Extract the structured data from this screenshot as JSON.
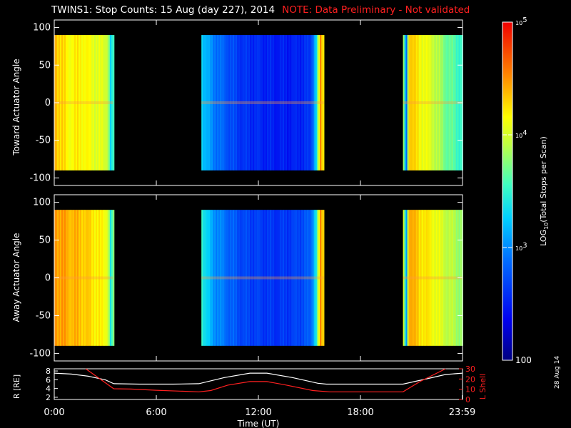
{
  "title": "TWINS1: Stop Counts: 15 Aug (day 227), 2014",
  "note": "NOTE: Data Preliminary - Not validated",
  "date_stamp": "28 Aug 14",
  "colors": {
    "background": "#000000",
    "axes": "#ffffff",
    "note": "#ff2020",
    "r_trace": "#ffffff",
    "lshell_trace": "#ff2020"
  },
  "chart_data": [
    {
      "type": "heatmap",
      "name": "toward",
      "ylabel": "Toward Actuator Angle",
      "ylim": [
        -110,
        110
      ],
      "yticks": [
        -100,
        -50,
        0,
        50,
        100
      ],
      "xlim_hours": [
        0,
        24
      ],
      "data_yrange": [
        -90,
        90
      ],
      "segments": [
        {
          "start": 0.0,
          "end": 3.45,
          "log_profile": [
            [
              0,
              4.4
            ],
            [
              0.8,
              4.15
            ],
            [
              1.6,
              4.2
            ],
            [
              2.5,
              4.05
            ],
            [
              3.1,
              4.0
            ],
            [
              3.3,
              3.2
            ],
            [
              3.45,
              3.6
            ]
          ]
        },
        {
          "start": 8.65,
          "end": 15.85,
          "log_profile": [
            [
              8.65,
              3.3
            ],
            [
              9.2,
              3.0
            ],
            [
              10.0,
              2.8
            ],
            [
              11.0,
              2.6
            ],
            [
              12.0,
              2.55
            ],
            [
              13.0,
              2.5
            ],
            [
              14.0,
              2.5
            ],
            [
              15.0,
              2.6
            ],
            [
              15.4,
              3.4
            ],
            [
              15.6,
              4.5
            ],
            [
              15.85,
              4.1
            ]
          ]
        },
        {
          "start": 20.5,
          "end": 24.0,
          "log_profile": [
            [
              20.5,
              3.8
            ],
            [
              20.65,
              2.7
            ],
            [
              20.8,
              4.4
            ],
            [
              21.3,
              4.2
            ],
            [
              22.2,
              4.0
            ],
            [
              23.0,
              3.7
            ],
            [
              24.0,
              3.5
            ]
          ]
        }
      ]
    },
    {
      "type": "heatmap",
      "name": "away",
      "ylabel": "Away Actuator Angle",
      "ylim": [
        -110,
        110
      ],
      "yticks": [
        -100,
        -50,
        0,
        50,
        100
      ],
      "xlim_hours": [
        0,
        24
      ],
      "data_yrange": [
        -90,
        90
      ],
      "segments": [
        {
          "start": 0.0,
          "end": 3.45,
          "log_profile": [
            [
              0,
              4.5
            ],
            [
              0.8,
              4.4
            ],
            [
              1.6,
              4.35
            ],
            [
              2.5,
              4.2
            ],
            [
              3.1,
              4.1
            ],
            [
              3.3,
              3.3
            ],
            [
              3.45,
              3.8
            ]
          ]
        },
        {
          "start": 8.65,
          "end": 15.85,
          "log_profile": [
            [
              8.65,
              3.5
            ],
            [
              9.2,
              3.1
            ],
            [
              10.0,
              2.9
            ],
            [
              11.0,
              2.7
            ],
            [
              12.0,
              2.65
            ],
            [
              13.0,
              2.6
            ],
            [
              14.0,
              2.65
            ],
            [
              15.0,
              2.8
            ],
            [
              15.4,
              3.5
            ],
            [
              15.6,
              4.5
            ],
            [
              15.85,
              4.2
            ]
          ]
        },
        {
          "start": 20.5,
          "end": 24.0,
          "log_profile": [
            [
              20.5,
              4.0
            ],
            [
              20.65,
              2.9
            ],
            [
              20.8,
              4.5
            ],
            [
              21.3,
              4.3
            ],
            [
              22.2,
              4.15
            ],
            [
              23.0,
              3.95
            ],
            [
              24.0,
              3.8
            ]
          ]
        }
      ]
    },
    {
      "type": "line",
      "name": "orbit",
      "ylabel": "R [RE]",
      "y2label": "L Shell",
      "xlabel": "Time (UT)",
      "xlim_hours": [
        0,
        24
      ],
      "xticks": [
        0,
        6,
        12,
        18,
        23.98
      ],
      "xtick_labels": [
        "0:00",
        "6:00",
        "12:00",
        "18:00",
        "23:59"
      ],
      "ylim": [
        1.5,
        8.5
      ],
      "yticks": [
        2,
        4,
        6,
        8
      ],
      "y2lim": [
        0,
        30
      ],
      "y2ticks": [
        0,
        10,
        20,
        30
      ],
      "series": [
        {
          "name": "R",
          "axis": "left",
          "color": "#ffffff",
          "x": [
            0,
            1,
            2,
            3,
            3.5,
            5,
            7,
            8.5,
            10,
            11.5,
            12.5,
            14,
            15.5,
            16,
            18,
            20.5,
            22,
            23,
            24
          ],
          "y": [
            7.5,
            7.3,
            6.8,
            6.0,
            5.1,
            5.0,
            5.0,
            5.1,
            6.5,
            7.5,
            7.5,
            6.5,
            5.2,
            5.0,
            5.0,
            5.0,
            6.3,
            7.2,
            7.5
          ]
        },
        {
          "name": "L Shell",
          "axis": "right",
          "color": "#ff2020",
          "x": [
            1.85,
            3.5,
            4.5,
            6,
            8.5,
            9.2,
            10.2,
            11.5,
            12.5,
            13.5,
            15.2,
            16.2,
            18,
            20.5,
            21.5,
            23.0
          ],
          "y": [
            31,
            10.5,
            10.2,
            9.0,
            7.5,
            8.7,
            14.0,
            17.5,
            17.5,
            14.5,
            8.7,
            7.5,
            7.5,
            7.5,
            17.5,
            31
          ]
        }
      ]
    }
  ],
  "colorbar": {
    "label": "LOG10(Total Stops per Scan)",
    "label_main": "LOG",
    "label_sub": "10",
    "label_rest": "(Total Stops per Scan)",
    "log_range": [
      2,
      5
    ],
    "ticks": [
      {
        "log": 5,
        "base": "10",
        "exp": "5"
      },
      {
        "log": 4,
        "base": "10",
        "exp": "4"
      },
      {
        "log": 3,
        "base": "10",
        "exp": "3"
      },
      {
        "log": 2,
        "text": "100"
      }
    ]
  }
}
